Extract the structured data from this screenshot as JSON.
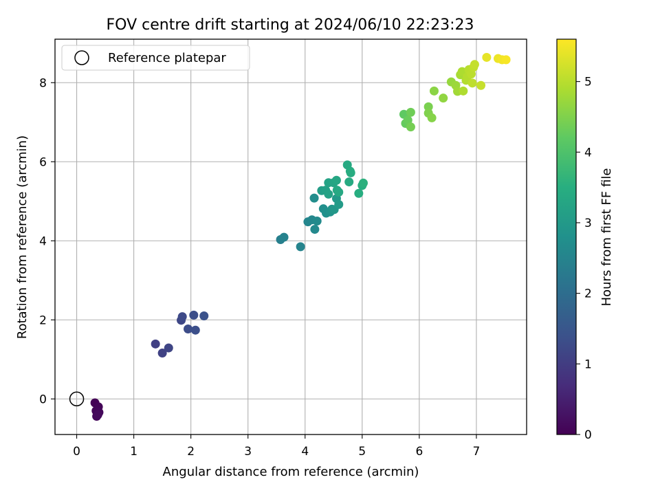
{
  "chart_data": {
    "type": "scatter",
    "title": "FOV centre drift starting at 2024/06/10 22:23:23",
    "xlabel": "Angular distance from reference (arcmin)",
    "ylabel": "Rotation from reference (arcmin)",
    "xlim": [
      -0.38,
      7.88
    ],
    "ylim": [
      -0.9,
      9.1
    ],
    "xticks": [
      0,
      1,
      2,
      3,
      4,
      5,
      6,
      7
    ],
    "yticks": [
      0,
      2,
      4,
      6,
      8
    ],
    "grid": true,
    "legend": {
      "placement": "upper-left",
      "entries": [
        "Reference platepar"
      ]
    },
    "reference_point": {
      "name": "Reference platepar",
      "x": 0,
      "y": 0,
      "marker": "open-circle"
    },
    "colorbar": {
      "label": "Hours from first FF file",
      "range": [
        0,
        5.6
      ],
      "ticks": [
        0,
        1,
        2,
        3,
        4,
        5
      ],
      "colormap": "viridis"
    },
    "series": [
      {
        "points": [
          {
            "x": 0.32,
            "y": -0.1,
            "c": 0.02
          },
          {
            "x": 0.38,
            "y": -0.2,
            "c": 0.05
          },
          {
            "x": 0.34,
            "y": -0.3,
            "c": 0.08
          },
          {
            "x": 0.39,
            "y": -0.34,
            "c": 0.1
          },
          {
            "x": 0.35,
            "y": -0.44,
            "c": 0.12
          },
          {
            "x": 0.37,
            "y": -0.4,
            "c": 0.14
          },
          {
            "x": 1.38,
            "y": 1.39,
            "c": 1.05
          },
          {
            "x": 1.5,
            "y": 1.16,
            "c": 1.1
          },
          {
            "x": 1.61,
            "y": 1.29,
            "c": 1.15
          },
          {
            "x": 1.83,
            "y": 1.99,
            "c": 1.2
          },
          {
            "x": 1.85,
            "y": 2.08,
            "c": 1.25
          },
          {
            "x": 1.95,
            "y": 1.77,
            "c": 1.3
          },
          {
            "x": 2.05,
            "y": 2.12,
            "c": 1.32
          },
          {
            "x": 2.08,
            "y": 1.74,
            "c": 1.35
          },
          {
            "x": 2.23,
            "y": 2.1,
            "c": 1.4
          },
          {
            "x": 3.57,
            "y": 4.03,
            "c": 2.4
          },
          {
            "x": 3.63,
            "y": 4.09,
            "c": 2.45
          },
          {
            "x": 3.92,
            "y": 3.85,
            "c": 2.5
          },
          {
            "x": 4.05,
            "y": 4.48,
            "c": 2.55
          },
          {
            "x": 4.12,
            "y": 4.53,
            "c": 2.58
          },
          {
            "x": 4.17,
            "y": 4.29,
            "c": 2.62
          },
          {
            "x": 4.21,
            "y": 4.5,
            "c": 2.65
          },
          {
            "x": 4.16,
            "y": 5.08,
            "c": 2.7
          },
          {
            "x": 4.32,
            "y": 4.81,
            "c": 2.75
          },
          {
            "x": 4.37,
            "y": 4.7,
            "c": 2.8
          },
          {
            "x": 4.44,
            "y": 4.73,
            "c": 2.85
          },
          {
            "x": 4.47,
            "y": 4.8,
            "c": 2.9
          },
          {
            "x": 4.51,
            "y": 4.79,
            "c": 2.95
          },
          {
            "x": 4.55,
            "y": 5.07,
            "c": 3.0
          },
          {
            "x": 4.59,
            "y": 4.92,
            "c": 3.05
          },
          {
            "x": 4.29,
            "y": 5.27,
            "c": 3.1
          },
          {
            "x": 4.36,
            "y": 5.28,
            "c": 3.15
          },
          {
            "x": 4.41,
            "y": 5.18,
            "c": 3.18
          },
          {
            "x": 4.41,
            "y": 5.47,
            "c": 3.22
          },
          {
            "x": 4.5,
            "y": 5.47,
            "c": 3.25
          },
          {
            "x": 4.55,
            "y": 5.53,
            "c": 3.3
          },
          {
            "x": 4.56,
            "y": 5.28,
            "c": 3.32
          },
          {
            "x": 4.59,
            "y": 5.23,
            "c": 3.35
          },
          {
            "x": 4.74,
            "y": 5.92,
            "c": 3.38
          },
          {
            "x": 4.77,
            "y": 5.49,
            "c": 3.4
          },
          {
            "x": 4.79,
            "y": 5.76,
            "c": 3.42
          },
          {
            "x": 4.8,
            "y": 5.72,
            "c": 3.45
          },
          {
            "x": 4.94,
            "y": 5.2,
            "c": 3.48
          },
          {
            "x": 5.0,
            "y": 5.4,
            "c": 3.5
          },
          {
            "x": 5.02,
            "y": 5.46,
            "c": 3.55
          },
          {
            "x": 5.73,
            "y": 7.2,
            "c": 4.2
          },
          {
            "x": 5.76,
            "y": 6.97,
            "c": 4.25
          },
          {
            "x": 5.8,
            "y": 7.05,
            "c": 4.3
          },
          {
            "x": 5.85,
            "y": 7.25,
            "c": 4.35
          },
          {
            "x": 5.85,
            "y": 6.88,
            "c": 4.4
          },
          {
            "x": 6.16,
            "y": 7.39,
            "c": 4.45
          },
          {
            "x": 6.16,
            "y": 7.23,
            "c": 4.5
          },
          {
            "x": 6.22,
            "y": 7.11,
            "c": 4.55
          },
          {
            "x": 6.26,
            "y": 7.79,
            "c": 4.6
          },
          {
            "x": 6.42,
            "y": 7.61,
            "c": 4.65
          },
          {
            "x": 6.56,
            "y": 8.02,
            "c": 4.7
          },
          {
            "x": 6.64,
            "y": 7.93,
            "c": 4.75
          },
          {
            "x": 6.67,
            "y": 7.78,
            "c": 4.8
          },
          {
            "x": 6.72,
            "y": 8.2,
            "c": 4.85
          },
          {
            "x": 6.75,
            "y": 8.28,
            "c": 4.9
          },
          {
            "x": 6.77,
            "y": 7.79,
            "c": 4.92
          },
          {
            "x": 6.82,
            "y": 8.06,
            "c": 4.95
          },
          {
            "x": 6.84,
            "y": 8.15,
            "c": 4.97
          },
          {
            "x": 6.87,
            "y": 8.33,
            "c": 5.0
          },
          {
            "x": 6.91,
            "y": 8.22,
            "c": 5.02
          },
          {
            "x": 6.93,
            "y": 7.99,
            "c": 5.05
          },
          {
            "x": 6.95,
            "y": 8.39,
            "c": 5.07
          },
          {
            "x": 6.97,
            "y": 8.46,
            "c": 5.1
          },
          {
            "x": 7.08,
            "y": 7.93,
            "c": 5.12
          },
          {
            "x": 7.18,
            "y": 8.64,
            "c": 5.4
          },
          {
            "x": 7.38,
            "y": 8.61,
            "c": 5.45
          },
          {
            "x": 7.45,
            "y": 8.58,
            "c": 5.5
          },
          {
            "x": 7.52,
            "y": 8.58,
            "c": 5.55
          }
        ]
      }
    ]
  }
}
